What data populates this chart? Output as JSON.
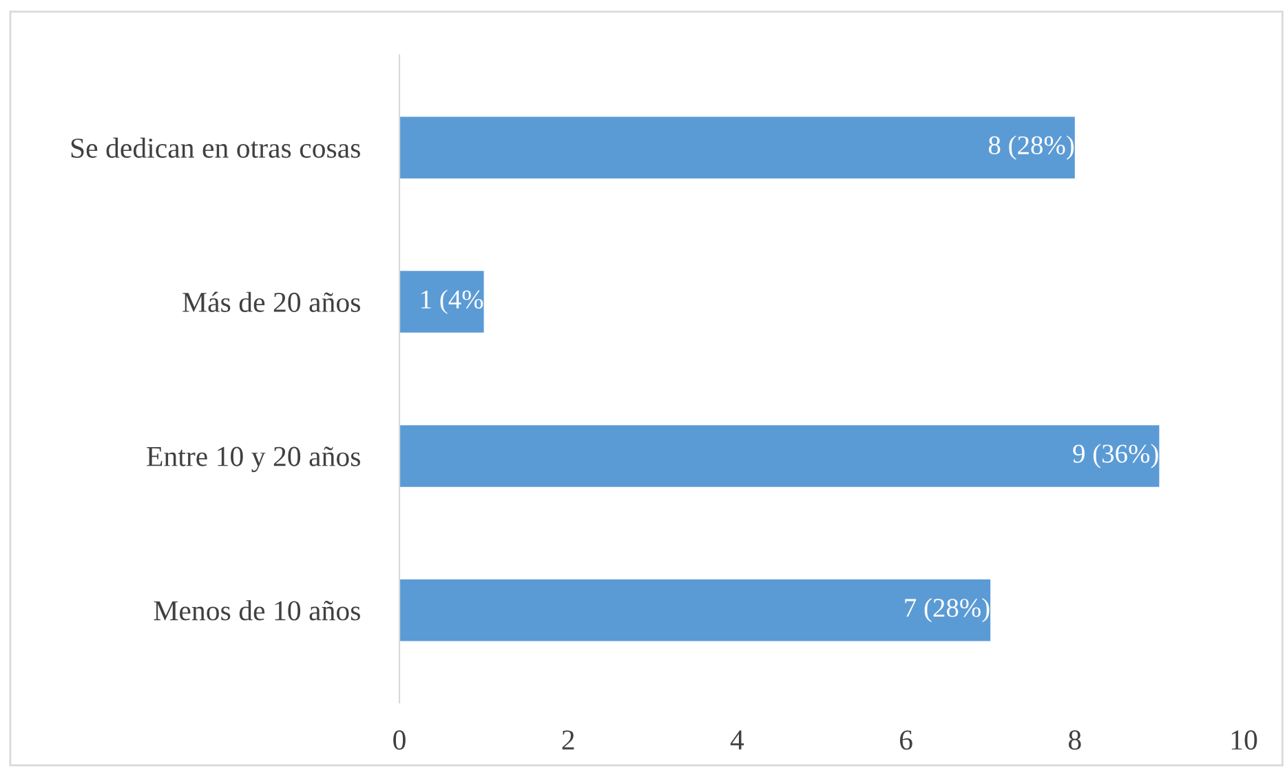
{
  "chart_data": {
    "type": "bar",
    "orientation": "horizontal",
    "categories": [
      "Se dedican en otras cosas",
      "Más de 20 años",
      "Entre 10 y 20 años",
      "Menos de 10 años"
    ],
    "values": [
      8,
      1,
      9,
      7
    ],
    "value_labels": [
      "8 (28%)",
      "1 (4%",
      "9 (36%)",
      "7 (28%)"
    ],
    "color": "#5b9bd5",
    "xlim": [
      0,
      10
    ],
    "xticks": [
      0,
      2,
      4,
      6,
      8,
      10
    ],
    "grid": false,
    "legend": false
  }
}
